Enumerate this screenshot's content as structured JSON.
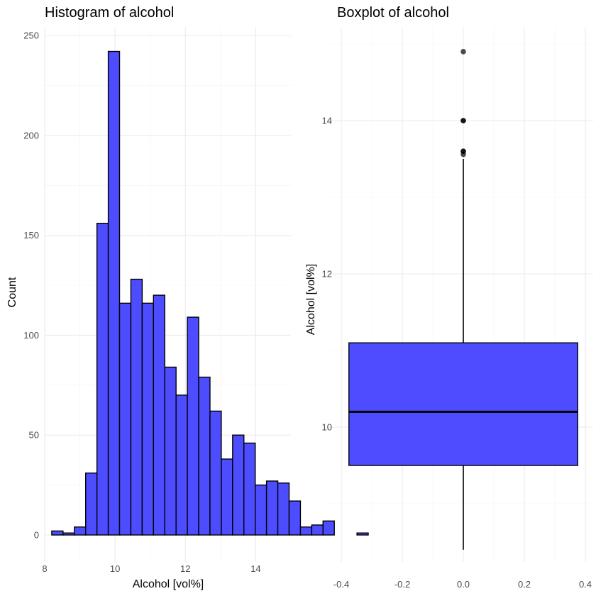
{
  "chart_data": [
    {
      "type": "bar",
      "title": "Histogram of alcohol",
      "xlabel": "Alcohol [vol%]",
      "ylabel": "Count",
      "xlim": [
        8.0,
        15.0
      ],
      "ylim": [
        0,
        250
      ],
      "xticks": [
        8,
        10,
        12,
        14
      ],
      "yticks": [
        0,
        50,
        100,
        150,
        200,
        250
      ],
      "bin_width": 0.3214,
      "bin_start": 8.2,
      "counts": [
        2,
        1,
        4,
        31,
        156,
        242,
        116,
        128,
        116,
        120,
        84,
        70,
        109,
        79,
        62,
        38,
        50,
        46,
        25,
        27,
        26,
        17,
        4,
        5,
        7,
        0,
        0,
        1
      ],
      "fill_color": "#4d4dff",
      "stroke_color": "#000000",
      "grid": true
    },
    {
      "type": "boxplot",
      "title": "Boxplot of alcohol",
      "xlabel": "",
      "ylabel": "Alcohol [vol%]",
      "xlim": [
        -0.4,
        0.4
      ],
      "ylim": [
        8.2,
        15.1
      ],
      "xticks": [
        -0.4,
        -0.2,
        0.0,
        0.2,
        0.4
      ],
      "xtick_labels": [
        "-0.4",
        "-0.2",
        "0.0",
        "0.2",
        "0.4"
      ],
      "yticks": [
        10,
        12,
        14
      ],
      "box": {
        "x_center": 0.0,
        "width": 0.75,
        "q1": 9.5,
        "median": 10.2,
        "q3": 11.1,
        "whisker_low": 8.4,
        "whisker_high": 13.5
      },
      "outliers": [
        13.56,
        13.6,
        13.6,
        14.0,
        14.0,
        14.9
      ],
      "fill_color": "#4d4dff",
      "stroke_color": "#000000",
      "grid": true
    }
  ]
}
